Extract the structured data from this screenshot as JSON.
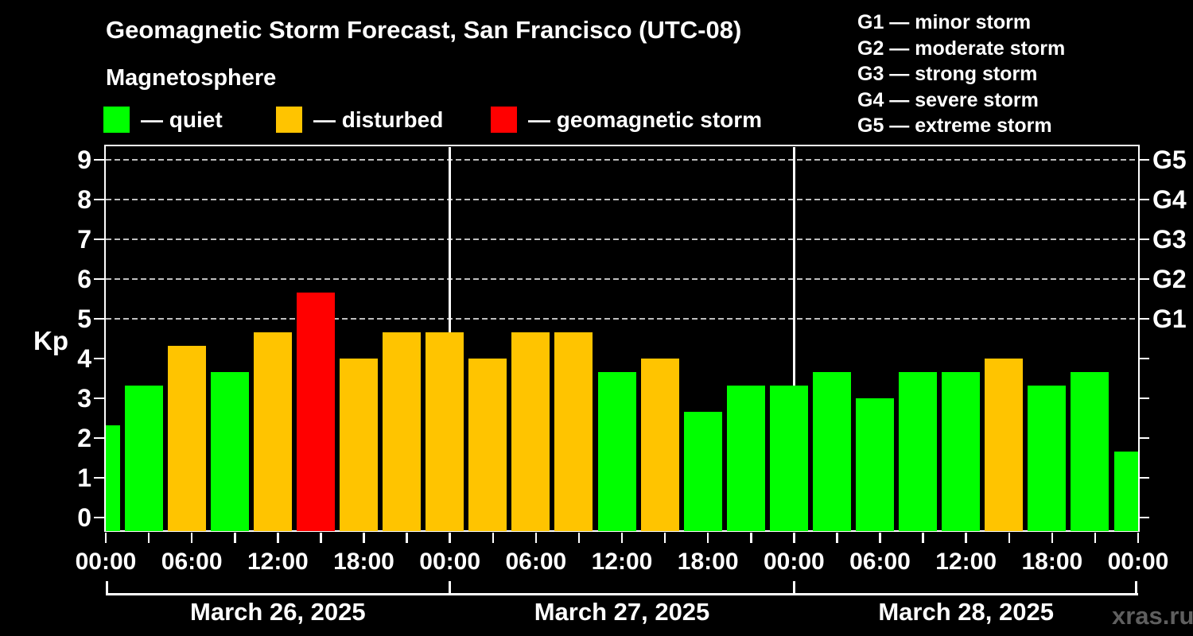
{
  "title": "Geomagnetic Storm Forecast, San Francisco (UTC-08)",
  "subtitle": "Magnetosphere",
  "legend": {
    "items": [
      {
        "key": "quiet",
        "label": "— quiet",
        "color": "#00ff00",
        "x": 130
      },
      {
        "key": "disturbed",
        "label": "— disturbed",
        "color": "#ffc400",
        "x": 347
      },
      {
        "key": "storm",
        "label": "— geomagnetic storm",
        "color": "#ff0000",
        "x": 617
      }
    ]
  },
  "storm_scale_legend": [
    "G1 — minor storm",
    "G2 — moderate storm",
    "G3 — strong storm",
    "G4 — severe storm",
    "G5 — extreme storm"
  ],
  "watermark": "xras.ru",
  "chart_data": {
    "type": "bar",
    "title": "Geomagnetic Storm Forecast, San Francisco (UTC-08)",
    "ylabel": "Kp",
    "ylim": [
      -0.33,
      9.33
    ],
    "y_ticks": [
      0,
      1,
      2,
      3,
      4,
      5,
      6,
      7,
      8,
      9
    ],
    "gridlines_at_kp": [
      5,
      6,
      7,
      8,
      9
    ],
    "grid_style": "dashed",
    "legend_position": "top",
    "right_axis_labels": [
      {
        "kp": 5,
        "label": "G1"
      },
      {
        "kp": 6,
        "label": "G2"
      },
      {
        "kp": 7,
        "label": "G3"
      },
      {
        "kp": 8,
        "label": "G4"
      },
      {
        "kp": 9,
        "label": "G5"
      }
    ],
    "x_axis_hours_span": 72,
    "x_minor_tick_step_hours": 3,
    "x_tick_labels": [
      {
        "t": 0,
        "label": "00:00"
      },
      {
        "t": 6,
        "label": "06:00"
      },
      {
        "t": 12,
        "label": "12:00"
      },
      {
        "t": 18,
        "label": "18:00"
      },
      {
        "t": 24,
        "label": "00:00"
      },
      {
        "t": 30,
        "label": "06:00"
      },
      {
        "t": 36,
        "label": "12:00"
      },
      {
        "t": 42,
        "label": "18:00"
      },
      {
        "t": 48,
        "label": "00:00"
      },
      {
        "t": 54,
        "label": "06:00"
      },
      {
        "t": 60,
        "label": "12:00"
      },
      {
        "t": 66,
        "label": "18:00"
      },
      {
        "t": 72,
        "label": "00:00"
      }
    ],
    "day_boundaries_hours": [
      0,
      24,
      48,
      72
    ],
    "days": [
      {
        "label": "March 26, 2025",
        "center_hour": 12
      },
      {
        "label": "March 27, 2025",
        "center_hour": 36
      },
      {
        "label": "March 28, 2025",
        "center_hour": 60
      }
    ],
    "points": [
      {
        "t": 0,
        "time": "00:00",
        "kp": 2.33,
        "status": "quiet"
      },
      {
        "t": 3,
        "time": "03:00",
        "kp": 3.33,
        "status": "quiet"
      },
      {
        "t": 6,
        "time": "06:00",
        "kp": 4.33,
        "status": "disturbed"
      },
      {
        "t": 9,
        "time": "09:00",
        "kp": 3.67,
        "status": "quiet"
      },
      {
        "t": 12,
        "time": "12:00",
        "kp": 4.67,
        "status": "disturbed"
      },
      {
        "t": 15,
        "time": "15:00",
        "kp": 5.67,
        "status": "storm"
      },
      {
        "t": 18,
        "time": "18:00",
        "kp": 4.0,
        "status": "disturbed"
      },
      {
        "t": 21,
        "time": "21:00",
        "kp": 4.67,
        "status": "disturbed"
      },
      {
        "t": 24,
        "time": "00:00",
        "kp": 4.67,
        "status": "disturbed"
      },
      {
        "t": 27,
        "time": "03:00",
        "kp": 4.0,
        "status": "disturbed"
      },
      {
        "t": 30,
        "time": "06:00",
        "kp": 4.67,
        "status": "disturbed"
      },
      {
        "t": 33,
        "time": "09:00",
        "kp": 4.67,
        "status": "disturbed"
      },
      {
        "t": 36,
        "time": "12:00",
        "kp": 3.67,
        "status": "quiet"
      },
      {
        "t": 39,
        "time": "15:00",
        "kp": 4.0,
        "status": "disturbed"
      },
      {
        "t": 42,
        "time": "18:00",
        "kp": 2.67,
        "status": "quiet"
      },
      {
        "t": 45,
        "time": "21:00",
        "kp": 3.33,
        "status": "quiet"
      },
      {
        "t": 48,
        "time": "00:00",
        "kp": 3.33,
        "status": "quiet"
      },
      {
        "t": 51,
        "time": "03:00",
        "kp": 3.67,
        "status": "quiet"
      },
      {
        "t": 54,
        "time": "06:00",
        "kp": 3.0,
        "status": "quiet"
      },
      {
        "t": 57,
        "time": "09:00",
        "kp": 3.67,
        "status": "quiet"
      },
      {
        "t": 60,
        "time": "12:00",
        "kp": 3.67,
        "status": "quiet"
      },
      {
        "t": 63,
        "time": "15:00",
        "kp": 4.0,
        "status": "disturbed"
      },
      {
        "t": 66,
        "time": "18:00",
        "kp": 3.33,
        "status": "quiet"
      },
      {
        "t": 69,
        "time": "21:00",
        "kp": 3.67,
        "status": "quiet"
      },
      {
        "t": 72,
        "time": "00:00",
        "kp": 1.67,
        "status": "quiet"
      }
    ]
  }
}
